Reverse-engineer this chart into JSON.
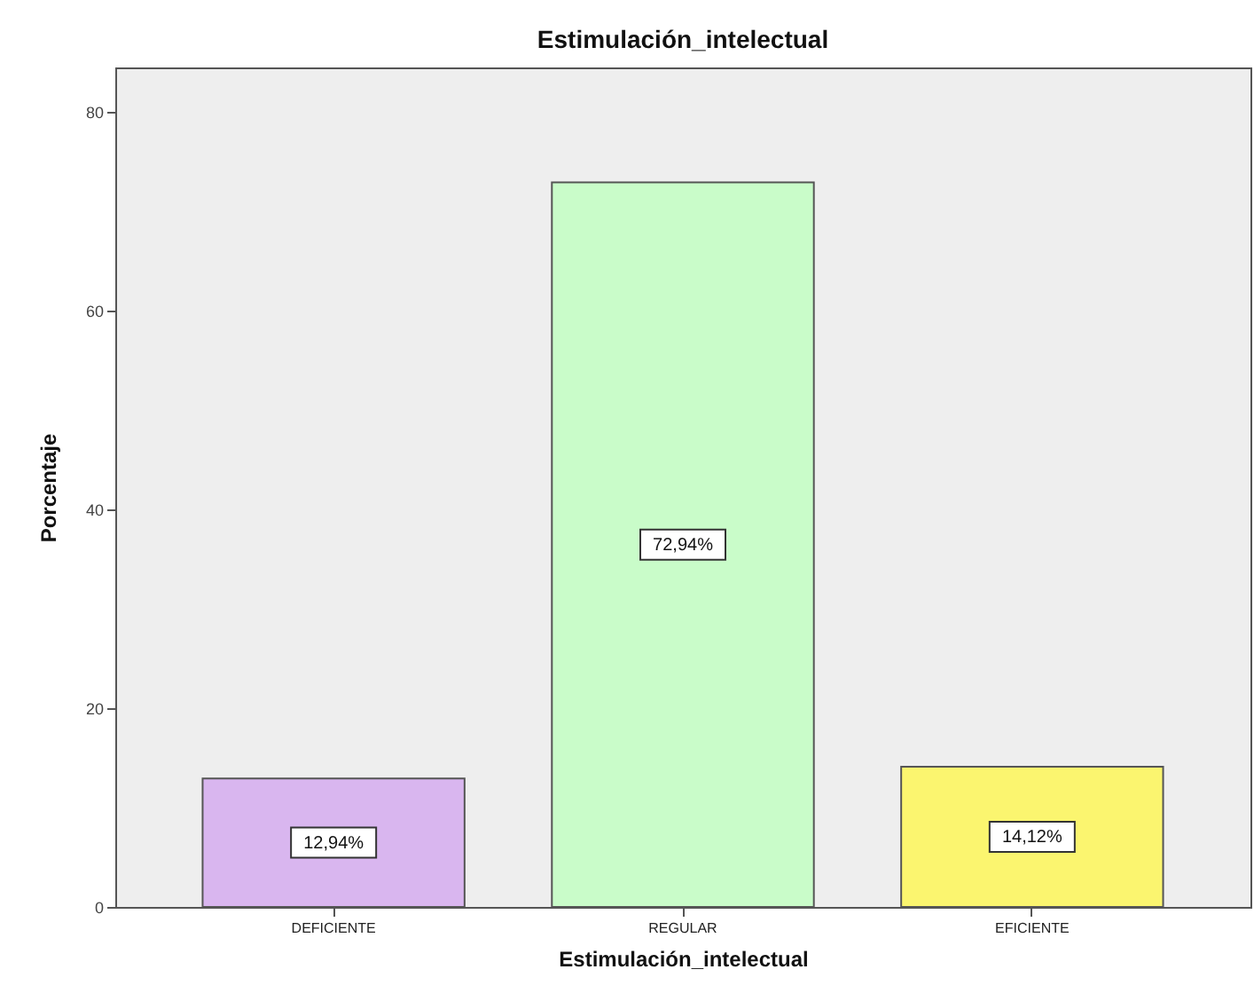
{
  "chart_data": {
    "type": "bar",
    "title": "Estimulación_intelectual",
    "xlabel": "Estimulación_intelectual",
    "ylabel": "Porcentaje",
    "categories": [
      "DEFICIENTE",
      "REGULAR",
      "EFICIENTE"
    ],
    "values": [
      12.94,
      72.94,
      14.12
    ],
    "colors": [
      "#d9b6ef",
      "#c9fcc9",
      "#fbf56f"
    ],
    "value_labels": [
      "12,94%",
      "72,94%",
      "14,12%"
    ],
    "ylim": [
      0,
      84.5
    ],
    "yticks": [
      0,
      20,
      40,
      60,
      80
    ],
    "grid": false,
    "legend": false
  }
}
